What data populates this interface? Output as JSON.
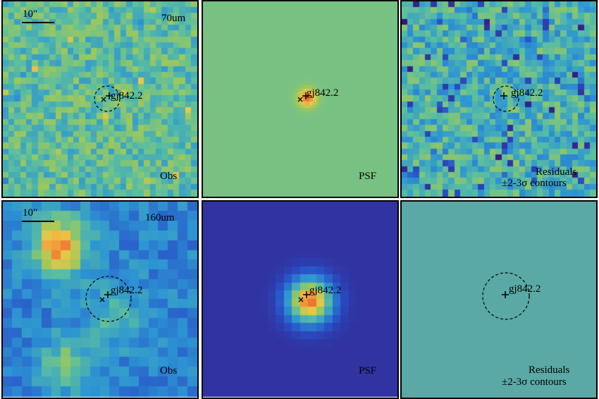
{
  "rows": [
    {
      "band": "70um",
      "scale_label": "10\"",
      "panels": [
        {
          "id": "obs",
          "kind": "obs",
          "label": "Obs",
          "target": "gj842.2",
          "colormap_level": 0.5,
          "circle": true
        },
        {
          "id": "psf",
          "kind": "psf",
          "label": "PSF",
          "target": "gj842.2",
          "colormap_level": 0.55,
          "circle": false
        },
        {
          "id": "res",
          "kind": "res",
          "label": "Residuals",
          "label2": "±2-3σ contours",
          "target": "gj842.2",
          "colormap_level": 0.45,
          "circle": true
        }
      ]
    },
    {
      "band": "160um",
      "scale_label": "10\"",
      "panels": [
        {
          "id": "obs",
          "kind": "obs",
          "label": "Obs",
          "target": "gj842.2",
          "colormap_level": 0.45,
          "circle": true
        },
        {
          "id": "psf",
          "kind": "psf",
          "label": "PSF",
          "target": "gj842.2",
          "colormap_level": 0.1,
          "circle": false
        },
        {
          "id": "res",
          "kind": "res",
          "label": "Residuals",
          "label2": "±2-3σ contours",
          "target": "gj842.2",
          "colormap_level": 0.35,
          "circle": true
        }
      ]
    }
  ],
  "axis_ticks_top_psf": [
    "20",
    "10"
  ],
  "axis_ticks_top_res": [
    "30",
    "20",
    "10"
  ],
  "colors": {
    "low": "#3b0f70",
    "high": "#e32f27",
    "psf_bg_top": "#9ac75b",
    "psf_bg_bottom": "#4a2a86",
    "res_bg_bottom": "#5aa9a6"
  }
}
